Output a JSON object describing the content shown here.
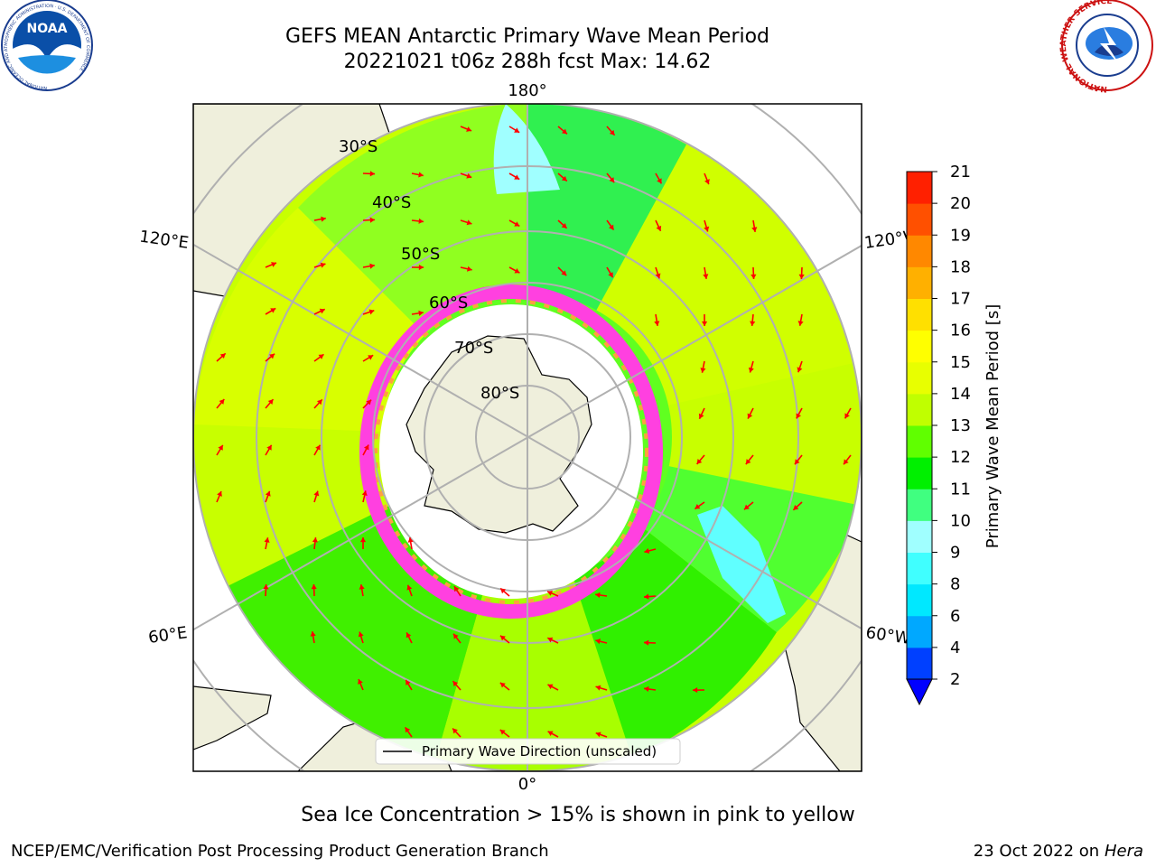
{
  "header": {
    "title_line1": "GEFS MEAN Antarctic Primary Wave Mean Period",
    "title_line2": "20221021 t06z 288h fcst   Max: 14.62"
  },
  "logos": {
    "left": "noaa-logo",
    "right": "nws-logo",
    "noaa_text": "NOAA",
    "noaa_ring_text": "NATIONAL OCEANIC AND ATMOSPHERIC ADMINISTRATION · U.S. DEPARTMENT OF COMMERCE",
    "nws_ring_text": "NATIONAL WEATHER SERVICE"
  },
  "map": {
    "longitude_labels": {
      "top": "180°",
      "bottom": "0°",
      "left_upper": "120°E",
      "left_lower": "60°E",
      "right_upper": "120°W",
      "right_lower": "60°W"
    },
    "latitude_labels": [
      "30°S",
      "40°S",
      "50°S",
      "60°S",
      "70°S",
      "80°S"
    ],
    "legend_label": "Primary Wave Direction (unscaled)"
  },
  "colorbar": {
    "label": "Primary Wave Mean Period [s]",
    "ticks": [
      "2",
      "4",
      "6",
      "8",
      "9",
      "10",
      "11",
      "12",
      "13",
      "14",
      "15",
      "16",
      "17",
      "18",
      "19",
      "20",
      "21"
    ],
    "colors": [
      "#0040ff",
      "#00a8ff",
      "#00e8ff",
      "#40ffff",
      "#a0ffff",
      "#40ff80",
      "#00f000",
      "#60ff00",
      "#c0ff00",
      "#e8ff00",
      "#ffff00",
      "#ffe000",
      "#ffb000",
      "#ff8800",
      "#ff5000",
      "#ff2000"
    ],
    "extend_color": "#0000ff"
  },
  "caption": "Sea Ice Concentration > 15% is shown in pink to yellow",
  "footer": {
    "left": "NCEP/EMC/Verification Post Processing Product Generation Branch",
    "right_date": "23 Oct 2022 on",
    "right_host": "Hera"
  }
}
